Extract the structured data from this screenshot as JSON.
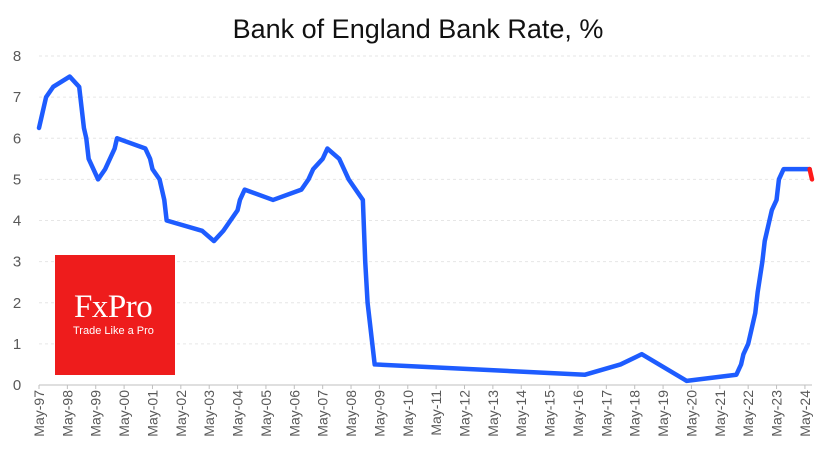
{
  "chart_data": {
    "type": "line",
    "title": "Bank of England Bank Rate, %",
    "xlabel": "",
    "ylabel": "",
    "ylim": [
      0,
      8
    ],
    "yticks": [
      "0",
      "1",
      "2",
      "3",
      "4",
      "5",
      "6",
      "7",
      "8"
    ],
    "grid": true,
    "x_tick_labels": [
      "May-97",
      "May-98",
      "May-99",
      "May-00",
      "May-01",
      "May-02",
      "May-03",
      "May-04",
      "May-05",
      "May-06",
      "May-07",
      "May-08",
      "May-09",
      "May-10",
      "May-11",
      "May-12",
      "May-13",
      "May-14",
      "May-15",
      "May-16",
      "May-17",
      "May-18",
      "May-19",
      "May-20",
      "May-21",
      "May-22",
      "May-23",
      "May-24"
    ],
    "series": [
      {
        "color": "#1e5cff",
        "points": [
          [
            "May-97",
            6.25
          ],
          [
            "Jun-97",
            6.5
          ],
          [
            "Jul-97",
            6.75
          ],
          [
            "Aug-97",
            7.0
          ],
          [
            "Nov-97",
            7.25
          ],
          [
            "Jun-98",
            7.5
          ],
          [
            "Oct-98",
            7.25
          ],
          [
            "Nov-98",
            6.75
          ],
          [
            "Dec-98",
            6.25
          ],
          [
            "Jan-99",
            6.0
          ],
          [
            "Feb-99",
            5.5
          ],
          [
            "Apr-99",
            5.25
          ],
          [
            "Jun-99",
            5.0
          ],
          [
            "Sep-99",
            5.25
          ],
          [
            "Nov-99",
            5.5
          ],
          [
            "Jan-00",
            5.75
          ],
          [
            "Feb-00",
            6.0
          ],
          [
            "Feb-01",
            5.75
          ],
          [
            "Apr-01",
            5.5
          ],
          [
            "May-01",
            5.25
          ],
          [
            "Aug-01",
            5.0
          ],
          [
            "Sep-01",
            4.75
          ],
          [
            "Oct-01",
            4.5
          ],
          [
            "Nov-01",
            4.0
          ],
          [
            "Feb-03",
            3.75
          ],
          [
            "Jul-03",
            3.5
          ],
          [
            "Nov-03",
            3.75
          ],
          [
            "Feb-04",
            4.0
          ],
          [
            "May-04",
            4.25
          ],
          [
            "Jun-04",
            4.5
          ],
          [
            "Aug-04",
            4.75
          ],
          [
            "Aug-05",
            4.5
          ],
          [
            "Aug-06",
            4.75
          ],
          [
            "Nov-06",
            5.0
          ],
          [
            "Jan-07",
            5.25
          ],
          [
            "May-07",
            5.5
          ],
          [
            "Jul-07",
            5.75
          ],
          [
            "Dec-07",
            5.5
          ],
          [
            "Feb-08",
            5.25
          ],
          [
            "Apr-08",
            5.0
          ],
          [
            "Oct-08",
            4.5
          ],
          [
            "Nov-08",
            3.0
          ],
          [
            "Dec-08",
            2.0
          ],
          [
            "Jan-09",
            1.5
          ],
          [
            "Feb-09",
            1.0
          ],
          [
            "Mar-09",
            0.5
          ],
          [
            "Aug-16",
            0.25
          ],
          [
            "Nov-17",
            0.5
          ],
          [
            "Aug-18",
            0.75
          ],
          [
            "Mar-20",
            0.1
          ],
          [
            "Dec-21",
            0.25
          ],
          [
            "Feb-22",
            0.5
          ],
          [
            "Mar-22",
            0.75
          ],
          [
            "May-22",
            1.0
          ],
          [
            "Jun-22",
            1.25
          ],
          [
            "Aug-22",
            1.75
          ],
          [
            "Sep-22",
            2.25
          ],
          [
            "Nov-22",
            3.0
          ],
          [
            "Dec-22",
            3.5
          ],
          [
            "Feb-23",
            4.0
          ],
          [
            "Mar-23",
            4.25
          ],
          [
            "May-23",
            4.5
          ],
          [
            "Jun-23",
            5.0
          ],
          [
            "Aug-23",
            5.25
          ],
          [
            "Jul-24",
            5.25
          ]
        ]
      },
      {
        "color": "#ff1a1a",
        "points": [
          [
            "Jul-24",
            5.25
          ],
          [
            "Aug-24",
            5.0
          ]
        ]
      }
    ]
  },
  "logo": {
    "name": "FxPro",
    "tagline": "Trade Like a Pro",
    "color": "#ee1c1c"
  }
}
